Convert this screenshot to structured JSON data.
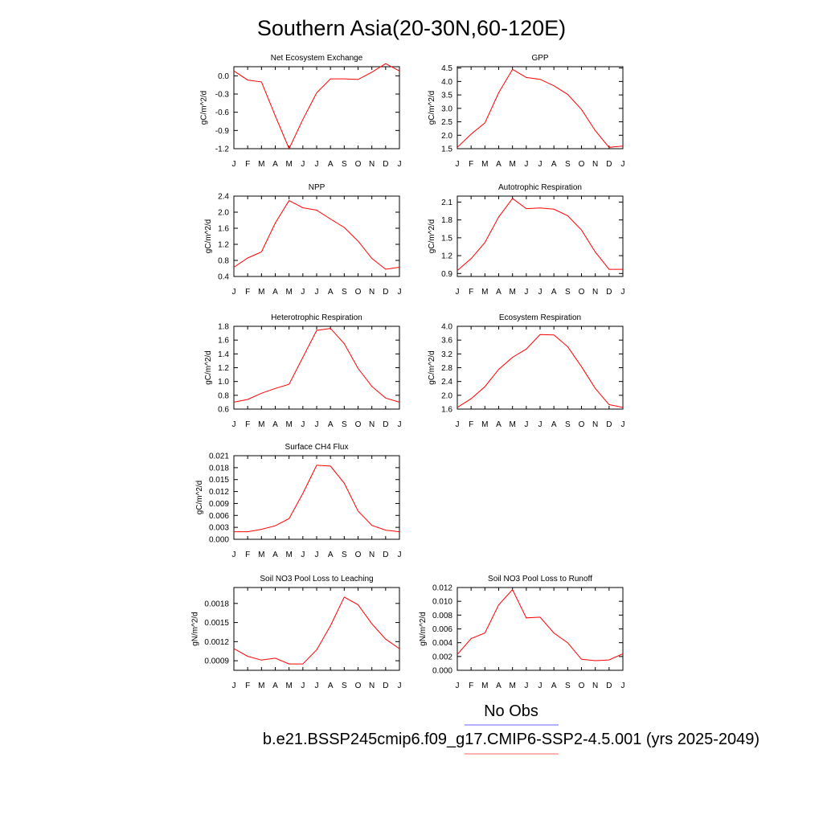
{
  "title": "Southern Asia(20-30N,60-120E)",
  "legend": {
    "entries": [
      {
        "label": "No Obs",
        "color": "#6666ff"
      },
      {
        "label": "b.e21.BSSP245cmip6.f09_g17.CMIP6-SSP2-4.5.001 (yrs 2025-2049)",
        "color": "#ff6666"
      }
    ]
  },
  "chart_data": [
    {
      "type": "line",
      "title": "Net Ecosystem Exchange",
      "ylabel": "gC/m^2/d",
      "categories": [
        "J",
        "F",
        "M",
        "A",
        "M",
        "J",
        "J",
        "A",
        "S",
        "O",
        "N",
        "D",
        "J"
      ],
      "yticks": [
        "0.0",
        "-0.3",
        "-0.6",
        "-0.9",
        "-1.2"
      ],
      "ylim": [
        -1.2,
        0.15
      ],
      "series": [
        {
          "color": "#ff0000",
          "values": [
            0.08,
            -0.07,
            -0.1,
            -0.66,
            -1.2,
            -0.72,
            -0.28,
            -0.05,
            -0.05,
            -0.06,
            0.06,
            0.2,
            0.08
          ]
        }
      ]
    },
    {
      "type": "line",
      "title": "GPP",
      "ylabel": "gC/m^2/d",
      "categories": [
        "J",
        "F",
        "M",
        "A",
        "M",
        "J",
        "J",
        "A",
        "S",
        "O",
        "N",
        "D",
        "J"
      ],
      "yticks": [
        "4.5",
        "4.0",
        "3.5",
        "3.0",
        "2.5",
        "2.0",
        "1.5"
      ],
      "ylim": [
        1.5,
        4.55
      ],
      "series": [
        {
          "color": "#ff0000",
          "values": [
            1.55,
            2.04,
            2.46,
            3.58,
            4.45,
            4.15,
            4.08,
            3.84,
            3.52,
            2.96,
            2.17,
            1.55,
            1.6
          ]
        }
      ]
    },
    {
      "type": "line",
      "title": "NPP",
      "ylabel": "gC/m^2/d",
      "categories": [
        "J",
        "F",
        "M",
        "A",
        "M",
        "J",
        "J",
        "A",
        "S",
        "O",
        "N",
        "D",
        "J"
      ],
      "yticks": [
        "2.4",
        "2.0",
        "1.6",
        "1.2",
        "0.8",
        "0.4"
      ],
      "ylim": [
        0.4,
        2.4
      ],
      "series": [
        {
          "color": "#ff0000",
          "values": [
            0.63,
            0.86,
            1.01,
            1.73,
            2.29,
            2.11,
            2.05,
            1.83,
            1.62,
            1.28,
            0.85,
            0.58,
            0.63
          ]
        }
      ]
    },
    {
      "type": "line",
      "title": "Autotrophic Respiration",
      "ylabel": "gC/m^2/d",
      "categories": [
        "J",
        "F",
        "M",
        "A",
        "M",
        "J",
        "J",
        "A",
        "S",
        "O",
        "N",
        "D",
        "J"
      ],
      "yticks": [
        "2.1",
        "1.8",
        "1.5",
        "1.2",
        "0.9"
      ],
      "ylim": [
        0.85,
        2.2
      ],
      "series": [
        {
          "color": "#ff0000",
          "values": [
            0.95,
            1.15,
            1.42,
            1.85,
            2.16,
            1.99,
            2.0,
            1.98,
            1.87,
            1.63,
            1.26,
            0.97,
            0.97
          ]
        }
      ]
    },
    {
      "type": "line",
      "title": "Heterotrophic Respiration",
      "ylabel": "gC/m^2/d",
      "categories": [
        "J",
        "F",
        "M",
        "A",
        "M",
        "J",
        "J",
        "A",
        "S",
        "O",
        "N",
        "D",
        "J"
      ],
      "yticks": [
        "1.8",
        "1.6",
        "1.4",
        "1.2",
        "1.0",
        "0.8",
        "0.6"
      ],
      "ylim": [
        0.6,
        1.8
      ],
      "series": [
        {
          "color": "#ff0000",
          "values": [
            0.7,
            0.74,
            0.83,
            0.9,
            0.96,
            1.35,
            1.74,
            1.77,
            1.55,
            1.19,
            0.93,
            0.76,
            0.7
          ]
        }
      ]
    },
    {
      "type": "line",
      "title": "Ecosystem Respiration",
      "ylabel": "gC/m^2/d",
      "categories": [
        "J",
        "F",
        "M",
        "A",
        "M",
        "J",
        "J",
        "A",
        "S",
        "O",
        "N",
        "D",
        "J"
      ],
      "yticks": [
        "4.0",
        "3.6",
        "3.2",
        "2.8",
        "2.4",
        "2.0",
        "1.6"
      ],
      "ylim": [
        1.6,
        4.0
      ],
      "series": [
        {
          "color": "#ff0000",
          "values": [
            1.65,
            1.9,
            2.25,
            2.75,
            3.1,
            3.34,
            3.76,
            3.75,
            3.41,
            2.83,
            2.2,
            1.73,
            1.65
          ]
        }
      ]
    },
    {
      "type": "line",
      "title": "Surface CH4 Flux",
      "ylabel": "gC/m^2/d",
      "categories": [
        "J",
        "F",
        "M",
        "A",
        "M",
        "J",
        "J",
        "A",
        "S",
        "O",
        "N",
        "D",
        "J"
      ],
      "yticks": [
        "0.021",
        "0.018",
        "0.015",
        "0.012",
        "0.009",
        "0.006",
        "0.003",
        "0.000"
      ],
      "ylim": [
        0.0,
        0.021
      ],
      "series": [
        {
          "color": "#ff0000",
          "values": [
            0.0019,
            0.0019,
            0.0025,
            0.0034,
            0.0052,
            0.0115,
            0.0186,
            0.0184,
            0.0141,
            0.0071,
            0.0035,
            0.0023,
            0.0019
          ]
        }
      ]
    },
    {
      "type": "line",
      "title": "Soil NO3 Pool Loss to Leaching",
      "ylabel": "gN/m^2/d",
      "categories": [
        "J",
        "F",
        "M",
        "A",
        "M",
        "J",
        "J",
        "A",
        "S",
        "O",
        "N",
        "D",
        "J"
      ],
      "yticks": [
        "0.0018",
        "0.0015",
        "0.0012",
        "0.0009"
      ],
      "ylim": [
        0.00075,
        0.00205
      ],
      "series": [
        {
          "color": "#ff0000",
          "values": [
            0.00109,
            0.00097,
            0.00091,
            0.00094,
            0.00085,
            0.00085,
            0.00107,
            0.00145,
            0.0019,
            0.00178,
            0.00148,
            0.00124,
            0.00109
          ]
        }
      ]
    },
    {
      "type": "line",
      "title": "Soil NO3 Pool Loss to Runoff",
      "ylabel": "gN/m^2/d",
      "categories": [
        "J",
        "F",
        "M",
        "A",
        "M",
        "J",
        "J",
        "A",
        "S",
        "O",
        "N",
        "D",
        "J"
      ],
      "yticks": [
        "0.012",
        "0.010",
        "0.008",
        "0.006",
        "0.004",
        "0.002",
        "0.000"
      ],
      "ylim": [
        0.0,
        0.012
      ],
      "series": [
        {
          "color": "#ff0000",
          "values": [
            0.0023,
            0.0046,
            0.0054,
            0.0095,
            0.0117,
            0.0076,
            0.0077,
            0.0054,
            0.004,
            0.0016,
            0.0014,
            0.0015,
            0.0024
          ]
        }
      ]
    }
  ]
}
